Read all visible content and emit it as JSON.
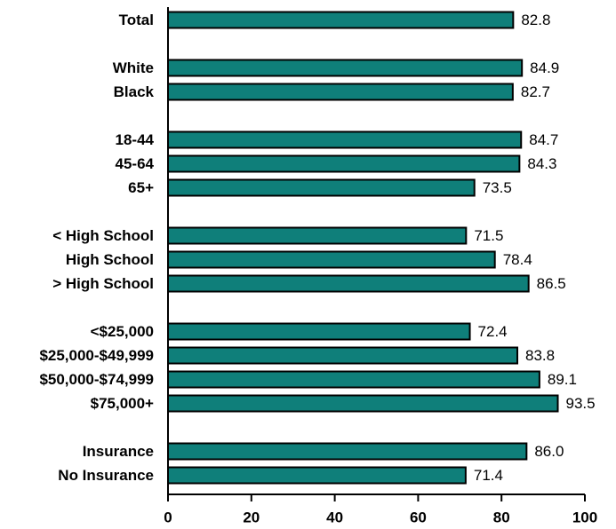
{
  "chart_data": {
    "type": "bar",
    "orientation": "horizontal",
    "title": "",
    "xlabel": "",
    "ylabel": "",
    "xlim": [
      0,
      100
    ],
    "x_ticks": [
      "0",
      "20",
      "40",
      "60",
      "80",
      "100"
    ],
    "grid": false,
    "legend": "none",
    "bar_color": "#0f7f7a",
    "bar_edge_color": "#000000",
    "value_labels": true,
    "groups": [
      {
        "categories": [
          "Total"
        ],
        "values": [
          82.8
        ],
        "labels": [
          "82.8"
        ]
      },
      {
        "categories": [
          "White",
          "Black"
        ],
        "values": [
          84.9,
          82.7
        ],
        "labels": [
          "84.9",
          "82.7"
        ]
      },
      {
        "categories": [
          "18-44",
          "45-64",
          "65+"
        ],
        "values": [
          84.7,
          84.3,
          73.5
        ],
        "labels": [
          "84.7",
          "84.3",
          "73.5"
        ]
      },
      {
        "categories": [
          "< High School",
          "High School",
          "> High School"
        ],
        "values": [
          71.5,
          78.4,
          86.5
        ],
        "labels": [
          "71.5",
          "78.4",
          "86.5"
        ]
      },
      {
        "categories": [
          "<$25,000",
          "$25,000-$49,999",
          "$50,000-$74,999",
          "$75,000+"
        ],
        "values": [
          72.4,
          83.8,
          89.1,
          93.5
        ],
        "labels": [
          "72.4",
          "83.8",
          "89.1",
          "93.5"
        ]
      },
      {
        "categories": [
          "Insurance",
          "No Insurance"
        ],
        "values": [
          86.0,
          71.4
        ],
        "labels": [
          "86.0",
          "71.4"
        ]
      }
    ]
  }
}
